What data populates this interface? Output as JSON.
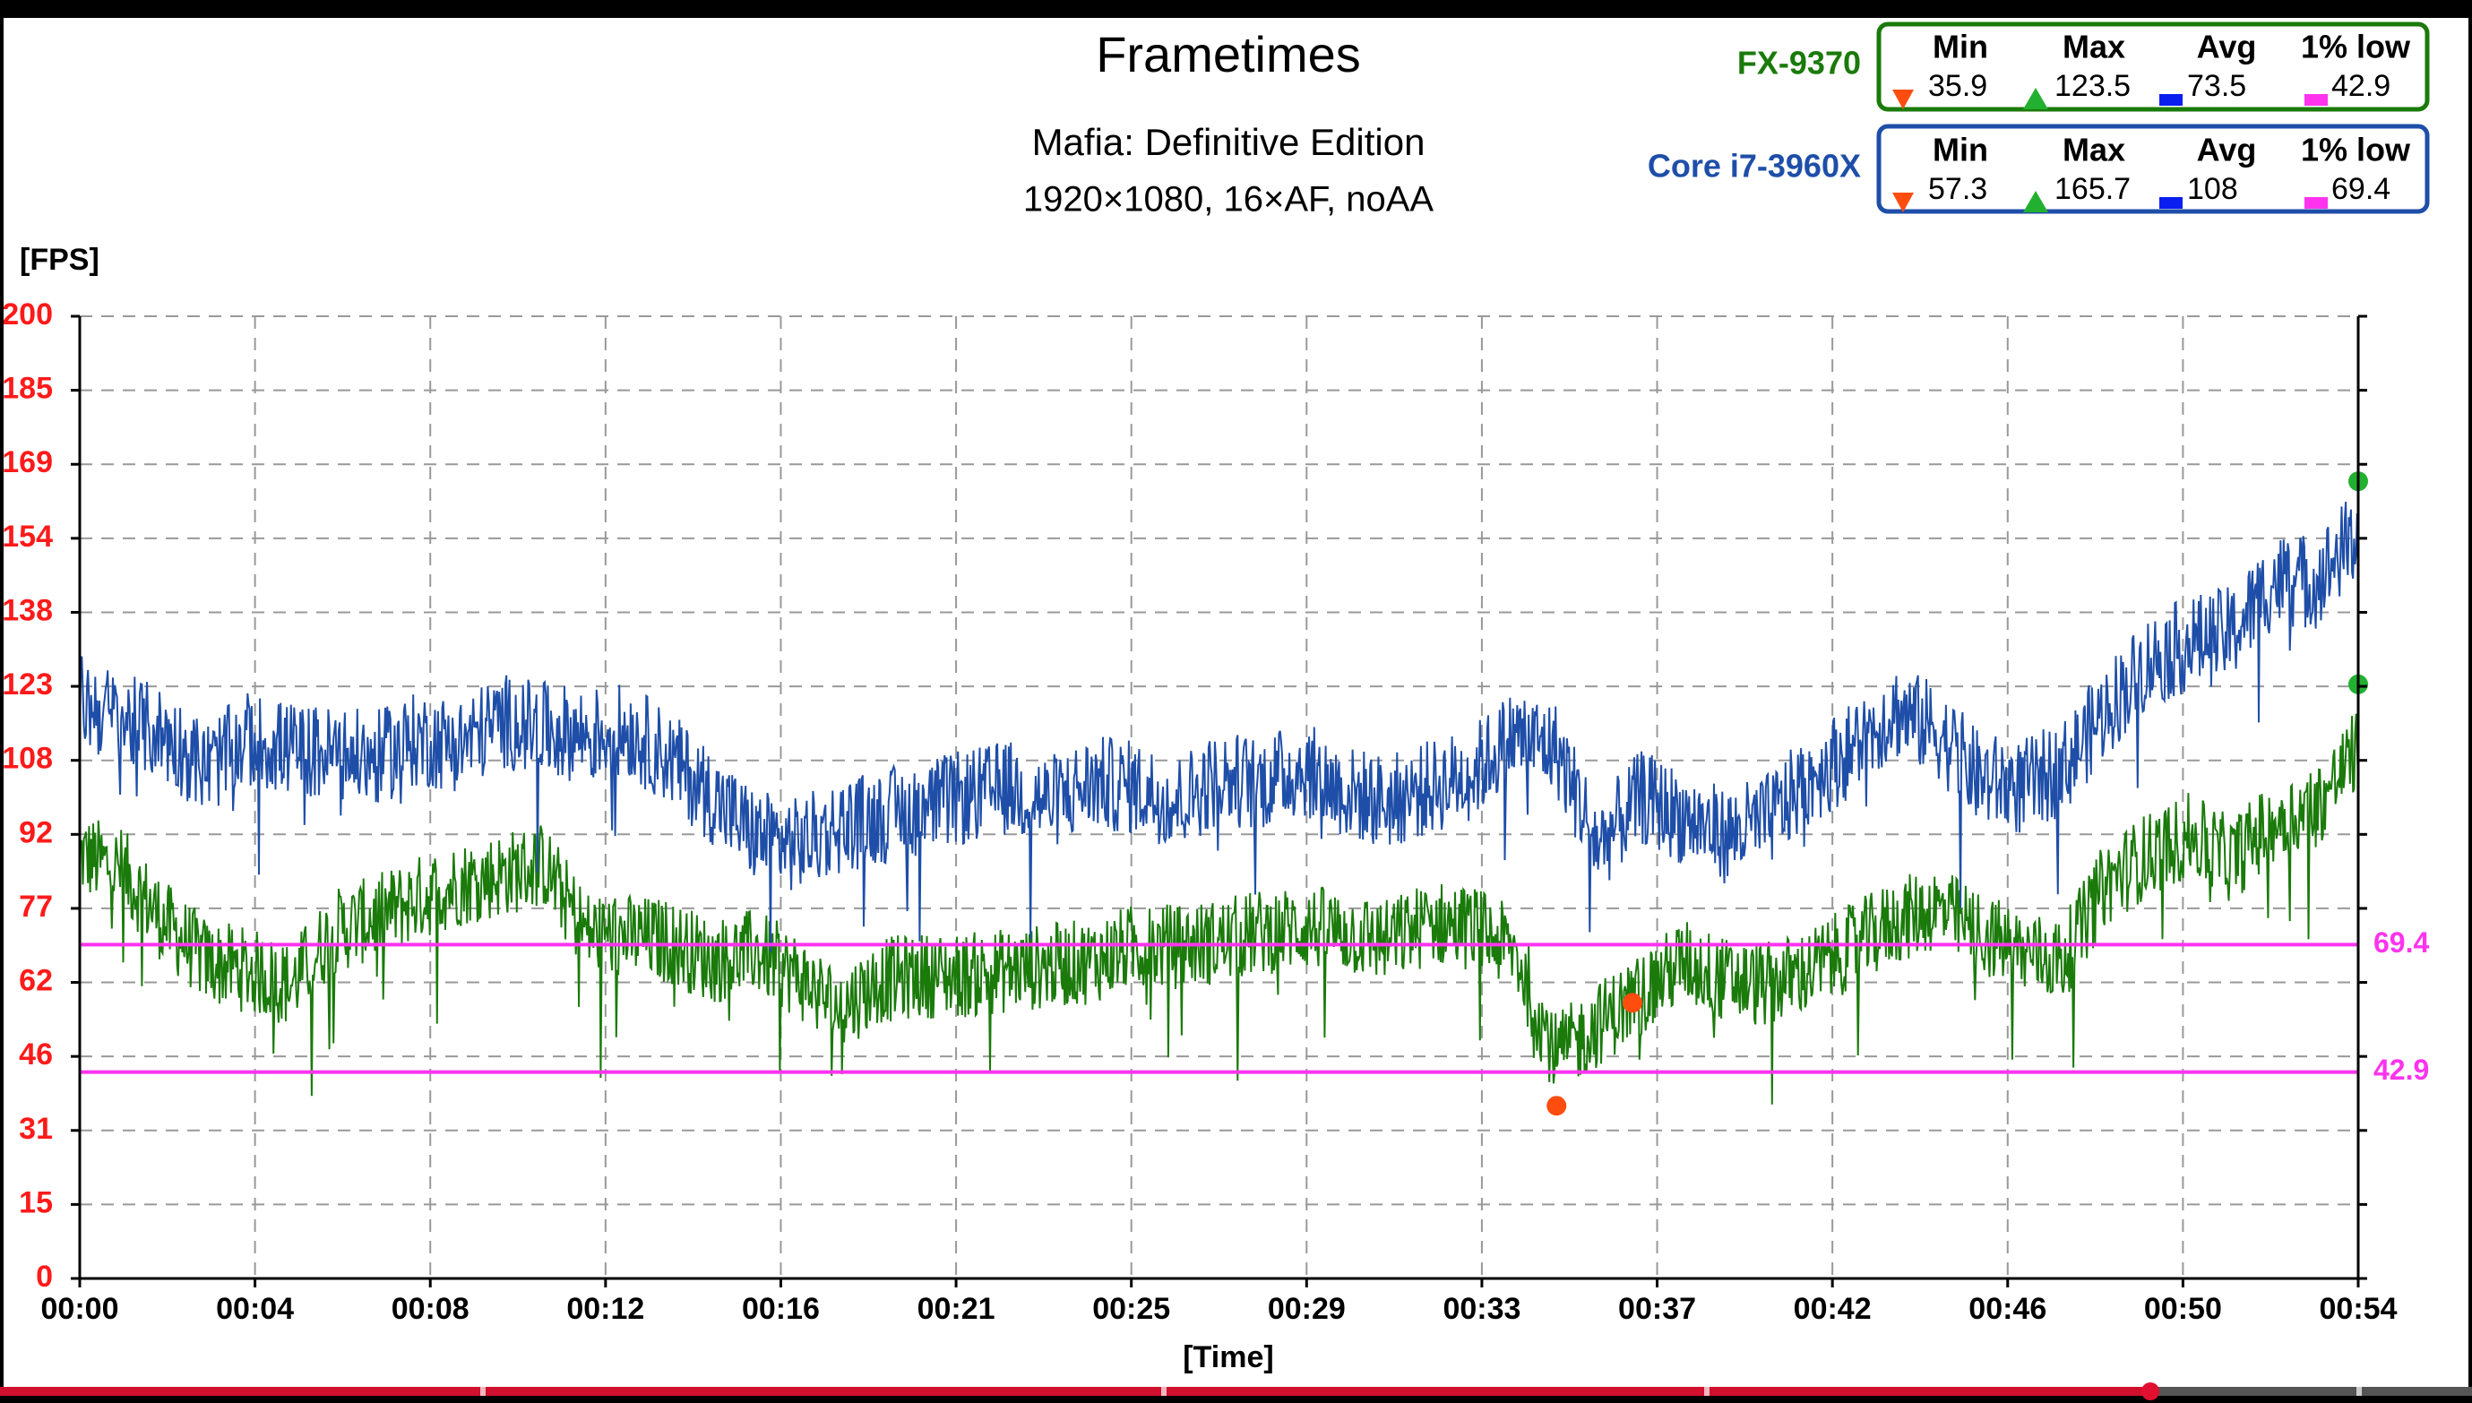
{
  "chart_data": {
    "type": "line",
    "title": "Frametimes",
    "subtitle": "Mafia: Definitive Edition",
    "settings": "1920×1080, 16×AF, noAA",
    "ylabel": "[FPS]",
    "xlabel": "[Time]",
    "ylim": [
      0,
      200
    ],
    "y_ticks": [
      "0",
      "15",
      "31",
      "46",
      "62",
      "77",
      "92",
      "108",
      "123",
      "138",
      "154",
      "169",
      "185",
      "200"
    ],
    "x_ticks": [
      "00:00",
      "00:04",
      "00:08",
      "00:12",
      "00:16",
      "00:21",
      "00:25",
      "00:29",
      "00:33",
      "00:37",
      "00:42",
      "00:46",
      "00:50",
      "00:54"
    ],
    "grid": true,
    "xlim_seconds": [
      0,
      54
    ],
    "reference_lines": [
      {
        "value": 69.4,
        "label": "69.4",
        "color": "#ff33ee"
      },
      {
        "value": 42.9,
        "label": "42.9",
        "color": "#ff33ee"
      }
    ],
    "series": [
      {
        "name": "FX-9370",
        "color": "#1a7a0a",
        "stats": {
          "min": "35.9",
          "max": "123.5",
          "avg": "73.5",
          "low1": "42.9"
        },
        "markers": {
          "min": [
            35,
            35.9
          ],
          "max": [
            54,
            123.5
          ]
        },
        "points": [
          [
            0,
            88
          ],
          [
            1,
            85
          ],
          [
            2,
            74
          ],
          [
            3,
            66
          ],
          [
            4,
            64
          ],
          [
            5,
            61
          ],
          [
            6,
            72
          ],
          [
            7,
            75
          ],
          [
            8,
            79
          ],
          [
            9,
            82
          ],
          [
            10,
            84
          ],
          [
            11,
            86
          ],
          [
            12,
            72
          ],
          [
            13,
            71
          ],
          [
            14,
            70
          ],
          [
            15,
            66
          ],
          [
            16,
            68
          ],
          [
            17,
            63
          ],
          [
            18,
            56
          ],
          [
            19,
            62
          ],
          [
            20,
            63
          ],
          [
            21,
            63
          ],
          [
            22,
            64
          ],
          [
            23,
            65
          ],
          [
            24,
            66
          ],
          [
            25,
            69
          ],
          [
            26,
            69
          ],
          [
            27,
            70
          ],
          [
            28,
            72
          ],
          [
            29,
            73
          ],
          [
            30,
            72
          ],
          [
            31,
            70
          ],
          [
            32,
            74
          ],
          [
            33,
            73
          ],
          [
            34,
            68
          ],
          [
            35,
            46
          ],
          [
            36,
            53
          ],
          [
            37,
            59
          ],
          [
            38,
            66
          ],
          [
            39,
            62
          ],
          [
            40,
            61
          ],
          [
            41,
            64
          ],
          [
            42,
            69
          ],
          [
            43,
            74
          ],
          [
            44,
            77
          ],
          [
            45,
            72
          ],
          [
            46,
            68
          ],
          [
            47,
            66
          ],
          [
            48,
            82
          ],
          [
            49,
            88
          ],
          [
            50,
            92
          ],
          [
            51,
            87
          ],
          [
            52,
            95
          ],
          [
            53,
            98
          ],
          [
            54,
            110
          ]
        ]
      },
      {
        "name": "Core i7-3960X",
        "color": "#1e4ea8",
        "stats": {
          "min": "57.3",
          "max": "165.7",
          "avg": "108",
          "low1": "69.4"
        },
        "markers": {
          "min": [
            36.8,
            57.3
          ],
          "max": [
            54,
            165.7
          ]
        },
        "points": [
          [
            0,
            120
          ],
          [
            1,
            116
          ],
          [
            2,
            113
          ],
          [
            3,
            106
          ],
          [
            4,
            112
          ],
          [
            5,
            110
          ],
          [
            6,
            109
          ],
          [
            7,
            108
          ],
          [
            8,
            112
          ],
          [
            9,
            111
          ],
          [
            10,
            116
          ],
          [
            11,
            114
          ],
          [
            12,
            113
          ],
          [
            13,
            114
          ],
          [
            14,
            108
          ],
          [
            15,
            100
          ],
          [
            16,
            92
          ],
          [
            17,
            90
          ],
          [
            18,
            94
          ],
          [
            19,
            96
          ],
          [
            20,
            98
          ],
          [
            21,
            100
          ],
          [
            22,
            102
          ],
          [
            23,
            99
          ],
          [
            24,
            103
          ],
          [
            25,
            102
          ],
          [
            26,
            99
          ],
          [
            27,
            104
          ],
          [
            28,
            103
          ],
          [
            29,
            106
          ],
          [
            30,
            101
          ],
          [
            31,
            99
          ],
          [
            32,
            102
          ],
          [
            33,
            105
          ],
          [
            34,
            113
          ],
          [
            35,
            110
          ],
          [
            36,
            90
          ],
          [
            37,
            100
          ],
          [
            38,
            96
          ],
          [
            39,
            92
          ],
          [
            40,
            95
          ],
          [
            41,
            104
          ],
          [
            42,
            110
          ],
          [
            43,
            118
          ],
          [
            44,
            114
          ],
          [
            45,
            104
          ],
          [
            46,
            102
          ],
          [
            47,
            106
          ],
          [
            48,
            118
          ],
          [
            49,
            128
          ],
          [
            50,
            132
          ],
          [
            51,
            134
          ],
          [
            52,
            145
          ],
          [
            53,
            145
          ],
          [
            54,
            155
          ]
        ]
      }
    ],
    "legend": {
      "col_min": "Min",
      "col_max": "Max",
      "col_avg": "Avg",
      "col_low": "1% low"
    }
  },
  "progress": {
    "fraction": 0.87
  }
}
